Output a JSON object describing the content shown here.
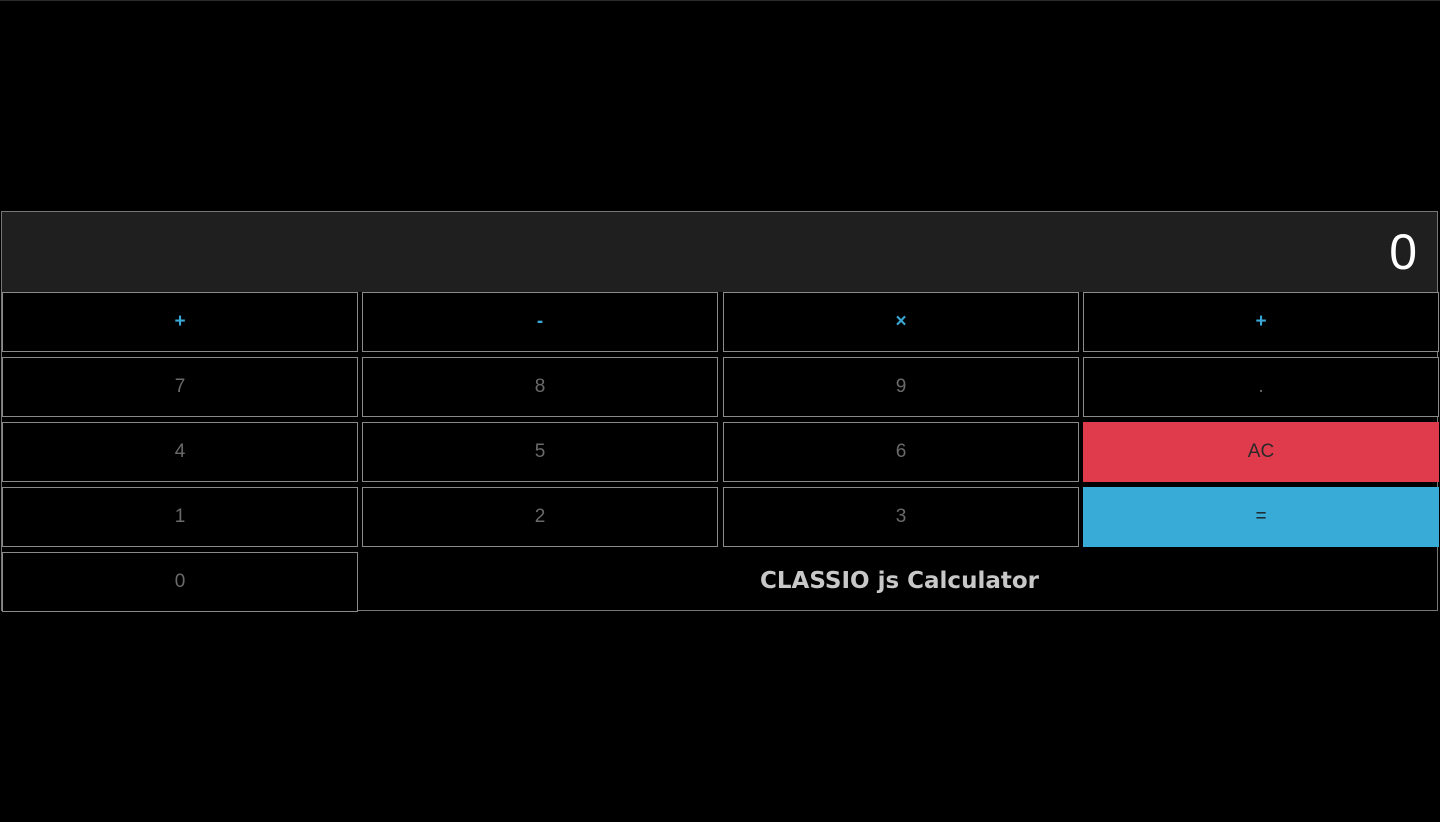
{
  "display": {
    "value": "0"
  },
  "operators": {
    "add": "+",
    "subtract": "-",
    "multiply": "×",
    "divide": "+"
  },
  "digits": {
    "seven": "7",
    "eight": "8",
    "nine": "9",
    "four": "4",
    "five": "5",
    "six": "6",
    "one": "1",
    "two": "2",
    "three": "3",
    "zero": "0"
  },
  "controls": {
    "decimal": ".",
    "clear": "AC",
    "equals": "="
  },
  "brand": {
    "title": "CLASSIO js Calculator"
  },
  "colors": {
    "background": "#000000",
    "display_bg": "#1f1f1f",
    "operator": "#3aa8d6",
    "clear": "#e03a4d",
    "equals": "#38acd6"
  }
}
